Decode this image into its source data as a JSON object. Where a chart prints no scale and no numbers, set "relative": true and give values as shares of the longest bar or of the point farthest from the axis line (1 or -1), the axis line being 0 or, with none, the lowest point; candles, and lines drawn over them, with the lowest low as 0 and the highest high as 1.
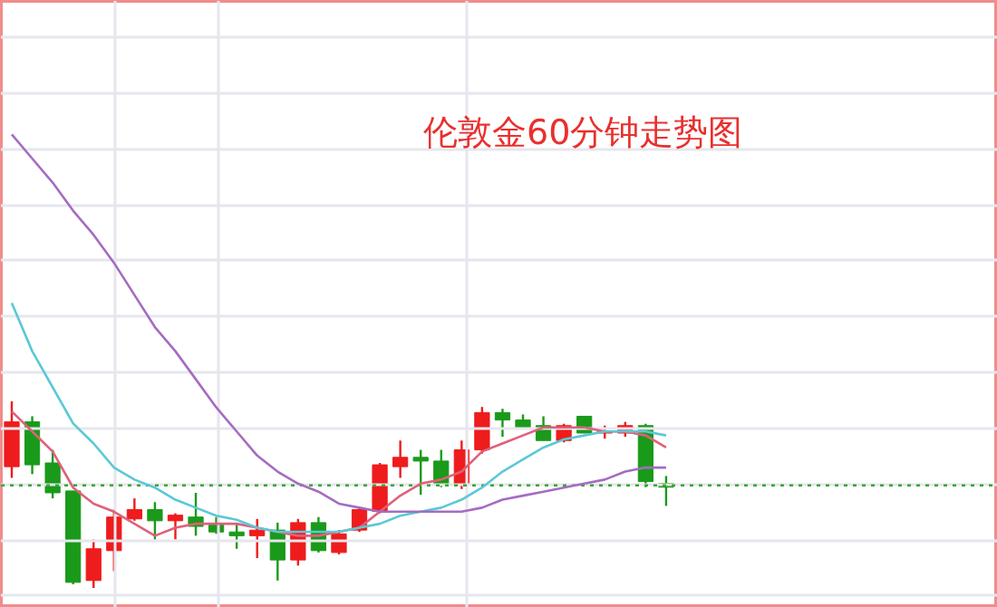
{
  "chart_data": [
    {
      "type": "candlestick",
      "title": "伦敦金60分钟走势图",
      "relative": true,
      "categories": [
        null,
        null,
        null,
        null,
        null,
        null,
        null,
        null,
        null,
        null,
        null,
        null,
        null,
        null,
        null,
        null,
        null,
        null,
        null,
        null,
        null,
        null,
        null,
        null,
        null,
        null,
        null,
        null,
        null,
        null,
        null,
        null,
        null
      ],
      "ohlc": [
        [
          0.65,
          1.0,
          0.59,
          0.89
        ],
        [
          0.89,
          0.92,
          0.61,
          0.66
        ],
        [
          0.67,
          0.74,
          0.48,
          0.51
        ],
        [
          0.52,
          0.52,
          0.02,
          0.03
        ],
        [
          0.04,
          0.26,
          0,
          0.21
        ],
        [
          0.2,
          0.42,
          0.09,
          0.38
        ],
        [
          0.37,
          0.48,
          0.36,
          0.42
        ],
        [
          0.42,
          0.46,
          0.26,
          0.36
        ],
        [
          0.36,
          0.4,
          0.26,
          0.39
        ],
        [
          0.38,
          0.51,
          0.28,
          0.33
        ],
        [
          0.34,
          0.38,
          0.29,
          0.3
        ],
        [
          0.3,
          0.34,
          0.21,
          0.28
        ],
        [
          0.28,
          0.37,
          0.16,
          0.31
        ],
        [
          0.31,
          0.35,
          0.04,
          0.15
        ],
        [
          0.15,
          0.37,
          0.12,
          0.35
        ],
        [
          0.35,
          0.38,
          0.19,
          0.2
        ],
        [
          0.19,
          0.31,
          0.18,
          0.29
        ],
        [
          0.31,
          0.43,
          0.3,
          0.42
        ],
        [
          0.41,
          0.67,
          0.4,
          0.66
        ],
        [
          0.65,
          0.79,
          0.59,
          0.7
        ],
        [
          0.7,
          0.74,
          0.5,
          0.68
        ],
        [
          0.68,
          0.74,
          0.54,
          0.56
        ],
        [
          0.56,
          0.79,
          0.53,
          0.74
        ],
        [
          0.74,
          0.97,
          0.72,
          0.94
        ],
        [
          0.94,
          0.96,
          0.81,
          0.9
        ],
        [
          0.9,
          0.93,
          0.85,
          0.86
        ],
        [
          0.87,
          0.92,
          0.79,
          0.79
        ],
        [
          0.79,
          0.88,
          0.78,
          0.87
        ],
        [
          0.92,
          0.92,
          0.83,
          0.83
        ],
        [
          0.83,
          0.87,
          0.8,
          0.84
        ],
        [
          0.83,
          0.89,
          0.81,
          0.87
        ],
        [
          0.87,
          0.88,
          0.54,
          0.57
        ],
        [
          0.56,
          0.6,
          0.44,
          0.54
        ]
      ],
      "colors": [
        "#ee1c1c",
        "#1a9a1a",
        "#1a9a1a",
        "#1a9a1a",
        "#ee1c1c",
        "#ee1c1c",
        "#ee1c1c",
        "#1a9a1a",
        "#ee1c1c",
        "#1a9a1a",
        "#1a9a1a",
        "#1a9a1a",
        "#ee1c1c",
        "#1a9a1a",
        "#ee1c1c",
        "#1a9a1a",
        "#ee1c1c",
        "#ee1c1c",
        "#ee1c1c",
        "#ee1c1c",
        "#1a9a1a",
        "#1a9a1a",
        "#ee1c1c",
        "#ee1c1c",
        "#1a9a1a",
        "#1a9a1a",
        "#1a9a1a",
        "#ee1c1c",
        "#1a9a1a",
        "#ee1c1c",
        "#ee1c1c",
        "#1a9a1a",
        "#1a9a1a"
      ],
      "ref_lines": [
        {
          "axis": "y",
          "value": 0.55,
          "color": "#33aa33",
          "line_style": "dotted"
        }
      ],
      "grid": true
    },
    {
      "type": "line",
      "relative": true,
      "categories": [
        null,
        null,
        null,
        null,
        null,
        null,
        null,
        null,
        null,
        null,
        null,
        null,
        null,
        null,
        null,
        null,
        null,
        null,
        null,
        null,
        null,
        null,
        null,
        null,
        null,
        null,
        null,
        null,
        null,
        null,
        null,
        null,
        null
      ],
      "series": [
        {
          "color": "#e0607a",
          "values": [
            0.31,
            0.26,
            0.21,
            0.12,
            0.08,
            0.06,
            0.03,
            0.0,
            0.02,
            0.03,
            0.03,
            0.03,
            0.02,
            0.01,
            0.0,
            0.0,
            0.01,
            0.02,
            0.06,
            0.1,
            0.13,
            0.14,
            0.16,
            0.21,
            0.23,
            0.25,
            0.27,
            0.27,
            0.27,
            0.26,
            0.26,
            0.25,
            0.22
          ]
        },
        {
          "color": "#5bc8d6",
          "values": [
            0.58,
            0.46,
            0.37,
            0.28,
            0.23,
            0.17,
            0.14,
            0.12,
            0.09,
            0.07,
            0.05,
            0.04,
            0.02,
            0.01,
            0.01,
            0.01,
            0.01,
            0.02,
            0.03,
            0.05,
            0.06,
            0.07,
            0.09,
            0.12,
            0.16,
            0.19,
            0.22,
            0.24,
            0.25,
            0.26,
            0.26,
            0.26,
            0.25
          ]
        },
        {
          "color": "#a56cc1",
          "values": [
            1.0,
            0.94,
            0.88,
            0.81,
            0.75,
            0.68,
            0.6,
            0.52,
            0.46,
            0.39,
            0.32,
            0.26,
            0.2,
            0.16,
            0.13,
            0.11,
            0.08,
            0.07,
            0.06,
            0.06,
            0.06,
            0.06,
            0.06,
            0.07,
            0.09,
            0.1,
            0.11,
            0.12,
            0.13,
            0.14,
            0.16,
            0.17,
            0.17
          ]
        }
      ]
    }
  ]
}
